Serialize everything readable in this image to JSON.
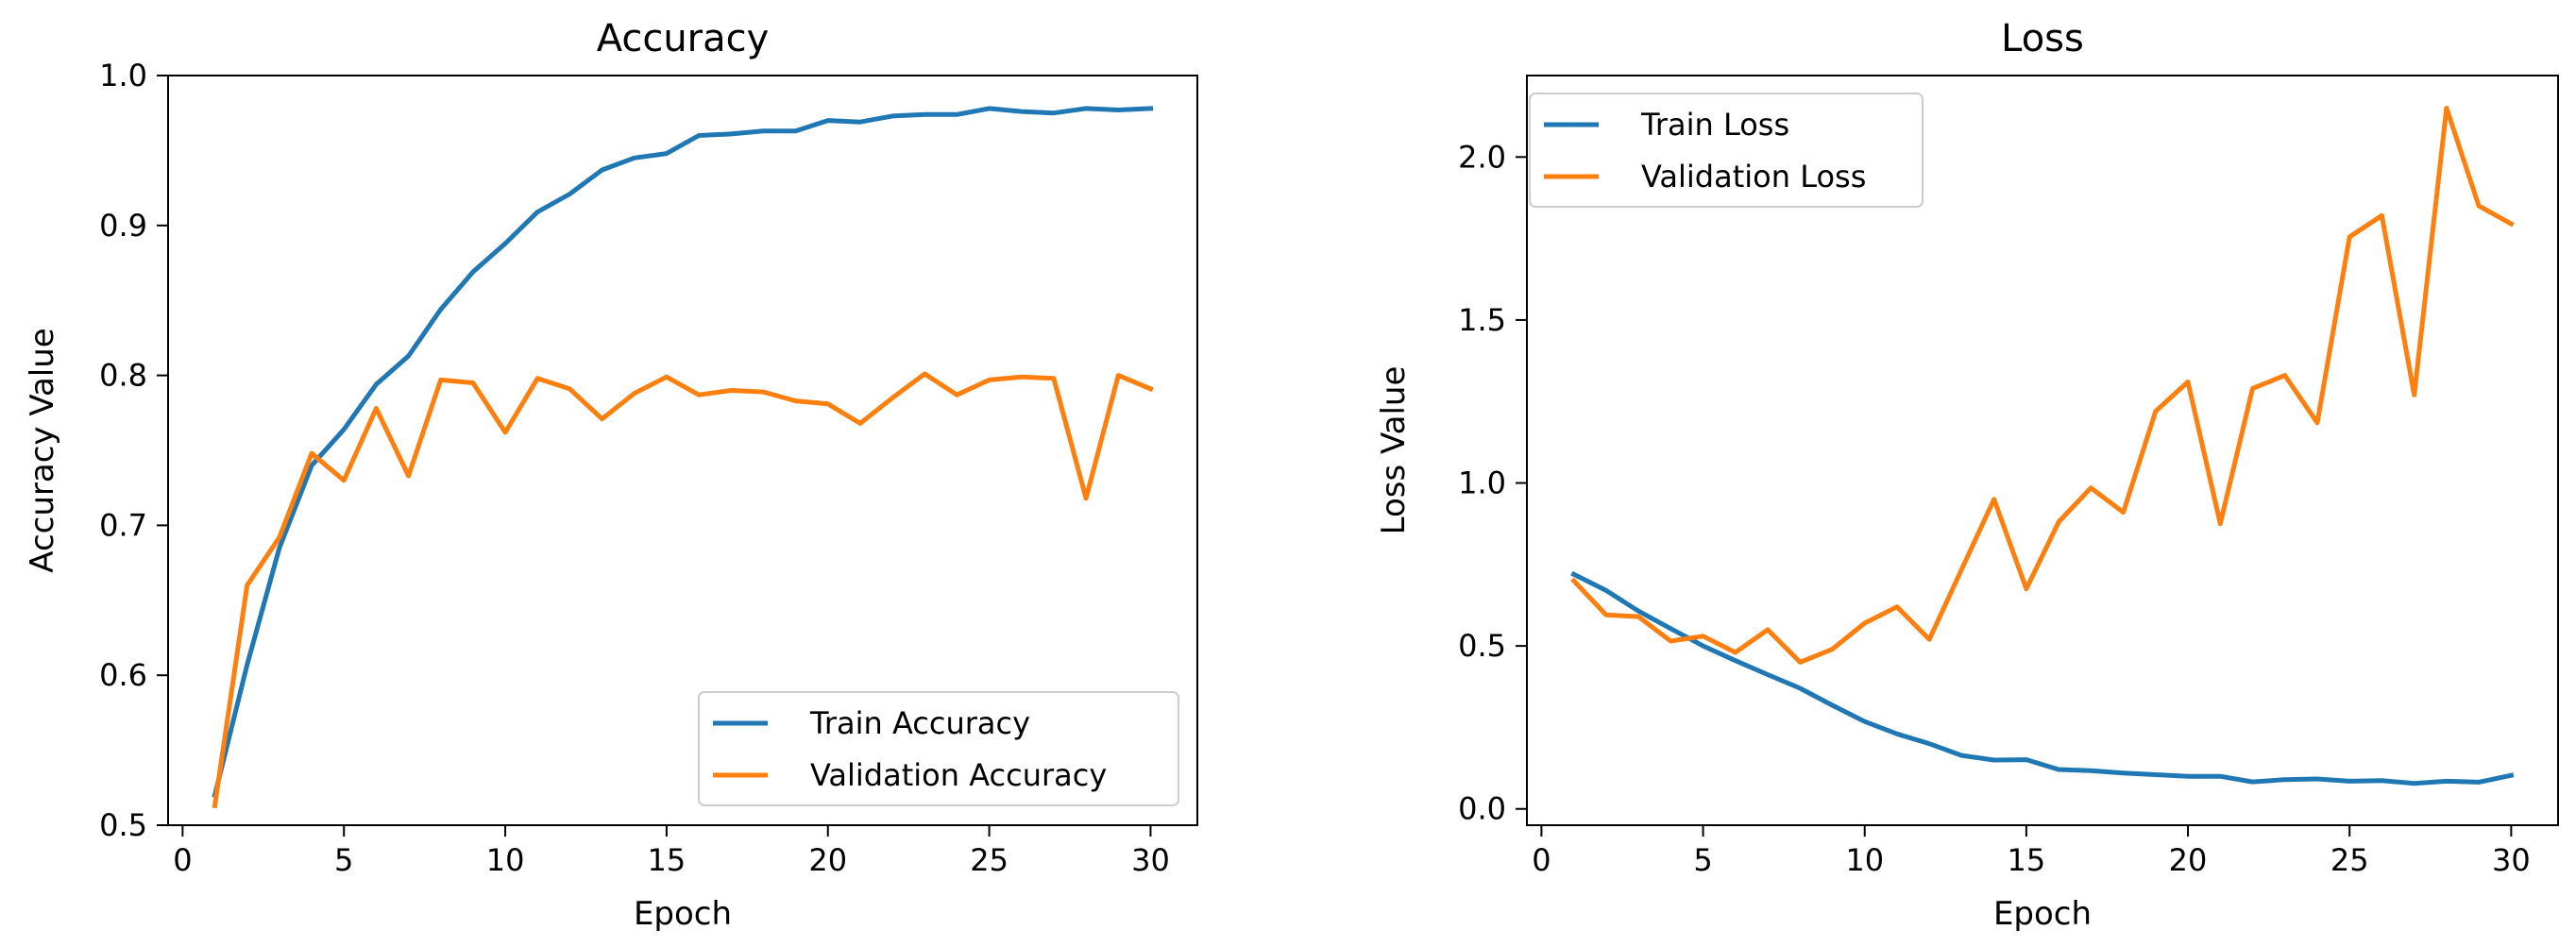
{
  "chart_data": [
    {
      "id": "accuracy",
      "type": "line",
      "title": "Accuracy",
      "xlabel": "Epoch",
      "ylabel": "Accuracy Value",
      "xlim": [
        -0.45,
        31.45
      ],
      "ylim": [
        0.5,
        1.0
      ],
      "xticks": [
        0,
        5,
        10,
        15,
        20,
        25,
        30
      ],
      "yticks": [
        0.5,
        0.6,
        0.7,
        0.8,
        0.9,
        1.0
      ],
      "ytick_labels": [
        "0.5",
        "0.6",
        "0.7",
        "0.8",
        "0.9",
        "1.0"
      ],
      "legend_position": "lower-right",
      "x": [
        1,
        2,
        3,
        4,
        5,
        6,
        7,
        8,
        9,
        10,
        11,
        12,
        13,
        14,
        15,
        16,
        17,
        18,
        19,
        20,
        21,
        22,
        23,
        24,
        25,
        26,
        27,
        28,
        29,
        30
      ],
      "series": [
        {
          "name": "Train Accuracy",
          "color": "#1f77b4",
          "values": [
            0.52,
            0.607,
            0.685,
            0.74,
            0.764,
            0.794,
            0.813,
            0.844,
            0.869,
            0.888,
            0.909,
            0.921,
            0.937,
            0.945,
            0.948,
            0.96,
            0.961,
            0.963,
            0.963,
            0.97,
            0.969,
            0.973,
            0.974,
            0.974,
            0.978,
            0.976,
            0.975,
            0.978,
            0.977,
            0.978
          ]
        },
        {
          "name": "Validation Accuracy",
          "color": "#ff7f0e",
          "values": [
            0.513,
            0.66,
            0.692,
            0.748,
            0.73,
            0.778,
            0.733,
            0.797,
            0.795,
            0.762,
            0.798,
            0.791,
            0.771,
            0.788,
            0.799,
            0.787,
            0.79,
            0.789,
            0.783,
            0.781,
            0.768,
            0.785,
            0.801,
            0.787,
            0.797,
            0.799,
            0.798,
            0.718,
            0.8,
            0.791
          ]
        }
      ]
    },
    {
      "id": "loss",
      "type": "line",
      "title": "Loss",
      "xlabel": "Epoch",
      "ylabel": "Loss Value",
      "xlim": [
        -0.45,
        31.45
      ],
      "ylim": [
        -0.05,
        2.25
      ],
      "xticks": [
        0,
        5,
        10,
        15,
        20,
        25,
        30
      ],
      "yticks": [
        0.0,
        0.5,
        1.0,
        1.5,
        2.0
      ],
      "ytick_labels": [
        "0.0",
        "0.5",
        "1.0",
        "1.5",
        "2.0"
      ],
      "legend_position": "upper-left",
      "x": [
        1,
        2,
        3,
        4,
        5,
        6,
        7,
        8,
        9,
        10,
        11,
        12,
        13,
        14,
        15,
        16,
        17,
        18,
        19,
        20,
        21,
        22,
        23,
        24,
        25,
        26,
        27,
        28,
        29,
        30
      ],
      "series": [
        {
          "name": "Train Loss",
          "color": "#1f77b4",
          "values": [
            0.72,
            0.67,
            0.607,
            0.553,
            0.5,
            0.455,
            0.412,
            0.37,
            0.318,
            0.268,
            0.23,
            0.2,
            0.164,
            0.15,
            0.151,
            0.121,
            0.117,
            0.11,
            0.105,
            0.1,
            0.1,
            0.083,
            0.09,
            0.092,
            0.085,
            0.087,
            0.078,
            0.085,
            0.082,
            0.103
          ]
        },
        {
          "name": "Validation Loss",
          "color": "#ff7f0e",
          "values": [
            0.7,
            0.595,
            0.59,
            0.515,
            0.53,
            0.48,
            0.55,
            0.45,
            0.49,
            0.57,
            0.62,
            0.52,
            0.735,
            0.95,
            0.675,
            0.88,
            0.985,
            0.91,
            1.22,
            1.31,
            0.875,
            1.29,
            1.33,
            1.185,
            1.755,
            1.82,
            1.27,
            2.15,
            1.85,
            1.795
          ]
        }
      ]
    }
  ]
}
